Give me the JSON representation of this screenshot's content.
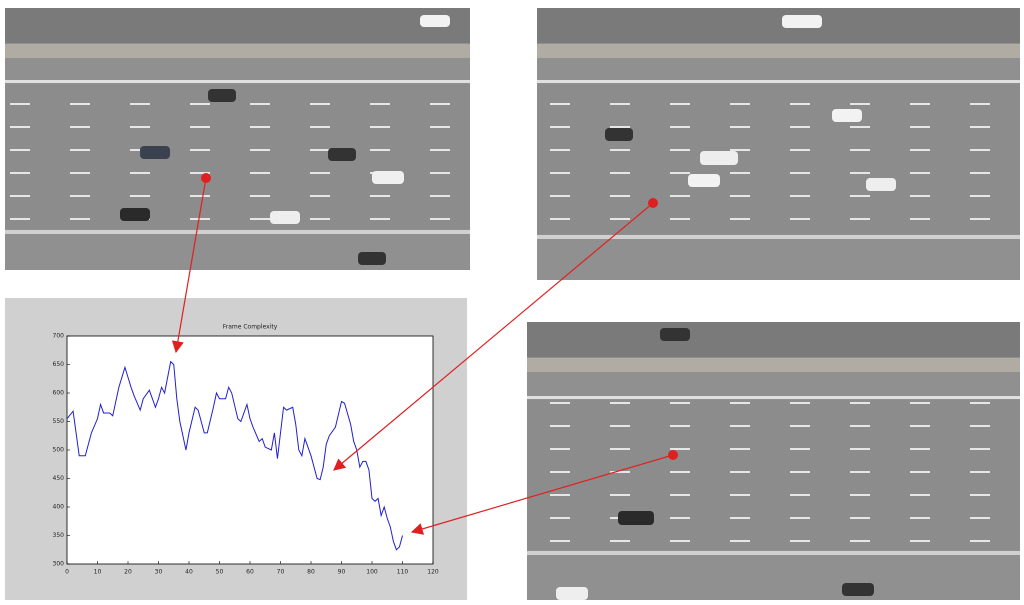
{
  "chart_data": {
    "type": "line",
    "title": "Frame Complexity",
    "x": [
      0,
      2,
      4,
      6,
      8,
      10,
      11,
      12,
      14,
      15,
      17,
      19,
      21,
      22,
      24,
      25,
      27,
      28,
      29,
      30,
      31,
      32,
      34,
      35,
      36,
      37,
      39,
      40,
      42,
      43,
      45,
      46,
      48,
      49,
      50,
      52,
      53,
      54,
      56,
      57,
      59,
      60,
      61,
      63,
      64,
      65,
      67,
      68,
      69,
      71,
      72,
      74,
      75,
      76,
      77,
      78,
      80,
      82,
      83,
      84,
      85,
      86,
      88,
      90,
      91,
      93,
      94,
      95,
      96,
      97,
      98,
      99,
      100,
      101,
      102,
      103,
      104,
      105,
      106,
      107,
      108,
      109,
      110
    ],
    "series": [
      {
        "color": "#2020d0",
        "values": [
          555,
          568,
          490,
          490,
          530,
          555,
          580,
          565,
          565,
          560,
          610,
          645,
          610,
          595,
          570,
          590,
          605,
          590,
          575,
          590,
          610,
          600,
          655,
          650,
          590,
          550,
          500,
          530,
          575,
          570,
          530,
          530,
          575,
          600,
          590,
          590,
          610,
          600,
          555,
          550,
          580,
          555,
          540,
          515,
          520,
          505,
          500,
          530,
          485,
          575,
          570,
          575,
          545,
          500,
          490,
          520,
          490,
          450,
          448,
          470,
          510,
          525,
          540,
          585,
          582,
          545,
          515,
          500,
          470,
          480,
          480,
          465,
          415,
          410,
          415,
          385,
          400,
          380,
          365,
          340,
          325,
          330,
          350
        ]
      }
    ],
    "xlim": [
      0,
      120
    ],
    "xticks": [
      0,
      10,
      20,
      30,
      40,
      50,
      60,
      70,
      80,
      90,
      100,
      110,
      120
    ],
    "ylim": [
      300,
      700
    ],
    "yticks": [
      300,
      350,
      400,
      450,
      500,
      550,
      600,
      650,
      700
    ]
  }
}
